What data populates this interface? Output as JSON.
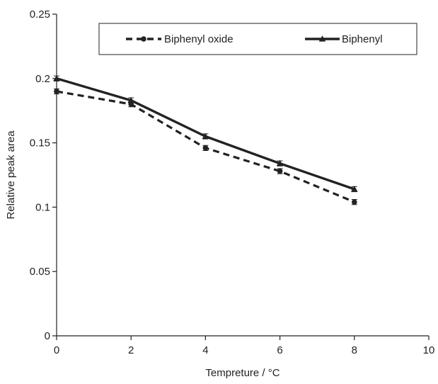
{
  "chart_data": {
    "type": "line",
    "title": "",
    "xlabel": "Tempreture / °C",
    "ylabel": "Relative peak area",
    "xlim": [
      0,
      10
    ],
    "ylim": [
      0,
      0.25
    ],
    "x_ticks": [
      0,
      2,
      4,
      6,
      8,
      10
    ],
    "x_tick_labels": [
      "0",
      "2",
      "4",
      "6",
      "8",
      "10"
    ],
    "y_ticks": [
      0,
      0.05,
      0.1,
      0.15,
      0.2,
      0.25
    ],
    "y_tick_labels": [
      "0",
      "0.05",
      "0.1",
      "0.15",
      "0.2",
      "0.25"
    ],
    "grid": false,
    "legend_position": "top",
    "series": [
      {
        "name": "Biphenyl oxide",
        "style": "dashed",
        "marker": "circle",
        "color": "#222222",
        "x": [
          0,
          2,
          4,
          6,
          8
        ],
        "y": [
          0.19,
          0.18,
          0.146,
          0.128,
          0.104
        ],
        "error": [
          0.002,
          0.002,
          0.002,
          0.002,
          0.002
        ]
      },
      {
        "name": "Biphenyl",
        "style": "solid",
        "marker": "triangle",
        "color": "#222222",
        "x": [
          0,
          2,
          4,
          6,
          8
        ],
        "y": [
          0.2,
          0.183,
          0.155,
          0.134,
          0.114
        ],
        "error": [
          0.002,
          0.002,
          0.002,
          0.002,
          0.002
        ]
      }
    ]
  }
}
